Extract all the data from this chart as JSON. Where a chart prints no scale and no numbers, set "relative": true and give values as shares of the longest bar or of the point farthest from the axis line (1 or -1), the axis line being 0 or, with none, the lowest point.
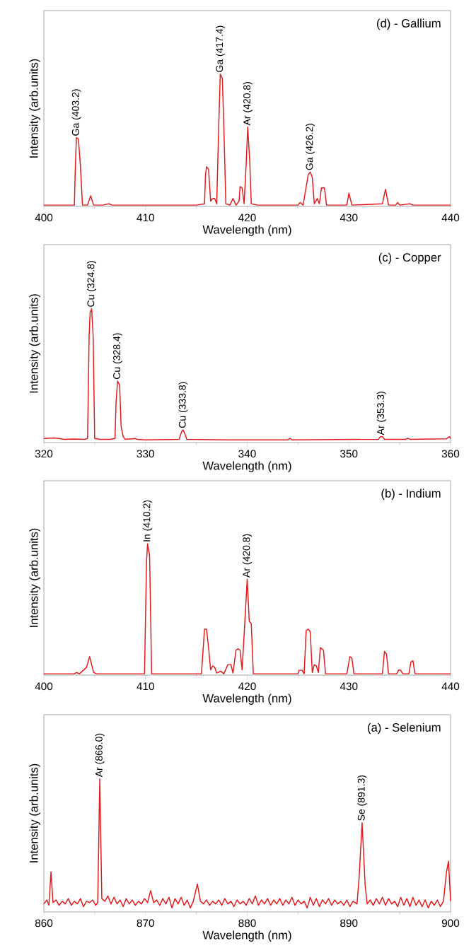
{
  "chart_data": [
    {
      "type": "line",
      "title": "(d) - Gallium",
      "xlabel": "Wavelength (nm)",
      "ylabel": "Intensity (arb.units)",
      "relative": true,
      "color": "#e31a1c",
      "xlim": [
        400,
        440
      ],
      "xticks": [
        400,
        410,
        420,
        430,
        440
      ],
      "x": [
        400,
        402,
        402.2,
        402.5,
        403.0,
        403.1,
        403.2,
        403.4,
        403.6,
        403.8,
        404.3,
        404.6,
        404.9,
        405.5,
        405.8,
        406.4,
        406.7,
        410,
        415,
        415.8,
        415.9,
        416.0,
        416.2,
        416.4,
        416.6,
        416.8,
        417.0,
        417.2,
        417.35,
        417.55,
        417.7,
        417.9,
        418.3,
        418.6,
        418.9,
        419.2,
        419.3,
        419.5,
        419.7,
        419.9,
        420.05,
        420.25,
        420.4,
        421,
        425,
        425.2,
        425.5,
        426.0,
        426.2,
        426.4,
        426.6,
        426.9,
        427.1,
        427.3,
        427.6,
        427.8,
        429.8,
        430.0,
        430.3,
        433.3,
        433.6,
        433.9,
        434.6,
        434.8,
        435.0,
        436.0,
        436.3,
        440
      ],
      "values": [
        0.01,
        0.01,
        0.01,
        0.01,
        0.01,
        0.3,
        0.52,
        0.51,
        0.3,
        0.01,
        0.01,
        0.08,
        0.01,
        0.01,
        0.01,
        0.02,
        0.01,
        0.01,
        0.01,
        0.02,
        0.24,
        0.3,
        0.28,
        0.04,
        0.06,
        0.06,
        0.02,
        0.61,
        1,
        0.97,
        0.61,
        0.02,
        0.01,
        0.06,
        0.01,
        0.04,
        0.15,
        0.14,
        0.02,
        0.32,
        0.6,
        0.34,
        0.02,
        0.01,
        0.01,
        0.03,
        0.01,
        0.24,
        0.26,
        0.22,
        0.02,
        0.06,
        0.02,
        0.14,
        0.14,
        0.01,
        0.01,
        0.1,
        0.01,
        0.02,
        0.13,
        0.01,
        0.01,
        0.03,
        0.01,
        0.02,
        0.01,
        0.01
      ],
      "annotations": [
        {
          "text": "Ga (403.2)",
          "x": 403.2,
          "y": 0.52
        },
        {
          "text": "Ga (417.4)",
          "x": 417.35,
          "y": 1
        },
        {
          "text": "Ar (420.8)",
          "x": 420.05,
          "y": 0.6
        },
        {
          "text": "Ga (426.2)",
          "x": 426.2,
          "y": 0.26
        }
      ]
    },
    {
      "type": "line",
      "title": "(c) - Copper",
      "xlabel": "Wavelength (nm)",
      "ylabel": "Intensity (arb.units)",
      "relative": true,
      "color": "#e31a1c",
      "xlim": [
        320,
        360
      ],
      "xticks": [
        320,
        330,
        340,
        350,
        360
      ],
      "x": [
        320,
        321,
        321.5,
        322,
        323,
        324,
        324.3,
        324.45,
        324.55,
        324.7,
        324.85,
        325.0,
        325.5,
        326.5,
        327.0,
        327.1,
        327.25,
        327.45,
        327.6,
        327.8,
        328.0,
        329,
        329.2,
        330,
        333.3,
        333.55,
        333.7,
        333.9,
        334.05,
        338,
        344.0,
        344.2,
        344.4,
        352.9,
        353.1,
        353.3,
        353.5,
        355.6,
        355.8,
        356,
        359.6,
        359.9,
        360
      ],
      "values": [
        0.03,
        0.034,
        0.03,
        0.024,
        0.026,
        0.024,
        0.03,
        0.79,
        0.97,
        1,
        0.79,
        0.03,
        0.024,
        0.024,
        0.03,
        0.3,
        0.46,
        0.43,
        0.12,
        0.044,
        0.024,
        0.03,
        0.024,
        0.02,
        0.024,
        0.08,
        0.095,
        0.06,
        0.024,
        0.02,
        0.02,
        0.032,
        0.02,
        0.024,
        0.044,
        0.044,
        0.024,
        0.024,
        0.032,
        0.024,
        0.028,
        0.044,
        0.03
      ],
      "annotations": [
        {
          "text": "Cu (324.8)",
          "x": 324.7,
          "y": 1
        },
        {
          "text": "Cu (328.4)",
          "x": 327.25,
          "y": 0.46
        },
        {
          "text": "Cu (333.8)",
          "x": 333.7,
          "y": 0.095
        },
        {
          "text": "Ar (353.3)",
          "x": 353.2,
          "y": 0.044
        }
      ]
    },
    {
      "type": "line",
      "title": "(b) - Indium",
      "xlabel": "Wavelength (nm)",
      "ylabel": "Intensity (arb.units)",
      "relative": true,
      "color": "#e31a1c",
      "xlim": [
        400,
        440
      ],
      "xticks": [
        400,
        410,
        420,
        430,
        440
      ],
      "x": [
        400,
        403,
        403.2,
        403.5,
        404.2,
        404.5,
        404.7,
        404.9,
        405.2,
        409.9,
        410.1,
        410.2,
        410.4,
        410.6,
        411,
        415.5,
        415.8,
        416.0,
        416.2,
        416.4,
        416.6,
        416.8,
        417.0,
        417.4,
        417.7,
        418.1,
        418.4,
        418.6,
        418.9,
        419.1,
        419.3,
        419.5,
        419.7,
        420.0,
        420.2,
        420.4,
        420.6,
        425,
        425.1,
        425.4,
        425.6,
        425.8,
        426.0,
        426.2,
        426.4,
        426.6,
        426.8,
        427.0,
        427.2,
        427.5,
        427.7,
        429.8,
        430.1,
        430.3,
        430.5,
        433.3,
        433.5,
        433.7,
        433.9,
        434.7,
        434.9,
        435.1,
        435.3,
        435.9,
        436.1,
        436.3,
        436.5,
        440
      ],
      "values": [
        0.01,
        0.01,
        0.02,
        0.01,
        0.06,
        0.14,
        0.08,
        0.02,
        0.01,
        0.01,
        0.87,
        1,
        0.91,
        0.01,
        0.01,
        0.01,
        0.35,
        0.35,
        0.21,
        0.04,
        0.07,
        0.06,
        0.016,
        0.03,
        0.01,
        0.08,
        0.08,
        0.016,
        0.19,
        0.2,
        0.19,
        0.04,
        0.31,
        0.73,
        0.41,
        0.39,
        0.01,
        0.01,
        0.037,
        0.037,
        0.01,
        0.34,
        0.35,
        0.33,
        0.02,
        0.08,
        0.07,
        0.02,
        0.21,
        0.19,
        0.01,
        0.01,
        0.14,
        0.13,
        0.01,
        0.01,
        0.18,
        0.16,
        0.01,
        0.01,
        0.04,
        0.037,
        0.01,
        0.01,
        0.1,
        0.11,
        0.01,
        0.01
      ],
      "annotations": [
        {
          "text": "In (410.2)",
          "x": 410.2,
          "y": 1
        },
        {
          "text": "Ar (420.8)",
          "x": 420.0,
          "y": 0.73
        }
      ]
    },
    {
      "type": "line",
      "title": "(a) - Selenium",
      "xlabel": "Wavelength (nm)",
      "ylabel": "Intensity (arb.units)",
      "relative": true,
      "color": "#e31a1c",
      "xlim": [
        860,
        900
      ],
      "xticks": [
        860,
        870,
        880,
        890,
        900
      ],
      "x": [
        860.0,
        860.3,
        860.5,
        860.7,
        860.9,
        861.2,
        861.5,
        861.8,
        862.1,
        862.4,
        862.7,
        863.0,
        863.3,
        863.6,
        863.9,
        864.2,
        864.5,
        864.8,
        865.1,
        865.3,
        865.5,
        865.7,
        866.0,
        866.3,
        866.6,
        866.9,
        867.2,
        867.5,
        867.8,
        868.1,
        868.4,
        868.7,
        869.0,
        869.3,
        869.6,
        869.9,
        870.2,
        870.5,
        870.8,
        871.1,
        871.4,
        871.7,
        872.0,
        872.3,
        872.6,
        872.9,
        873.2,
        873.5,
        873.8,
        874.1,
        874.4,
        874.7,
        875.1,
        875.4,
        875.7,
        876.0,
        876.3,
        876.6,
        876.9,
        877.2,
        877.5,
        877.8,
        878.1,
        878.4,
        878.7,
        879.0,
        879.3,
        879.6,
        879.9,
        880.2,
        880.5,
        880.8,
        881.1,
        881.4,
        881.7,
        882.0,
        882.3,
        882.6,
        882.9,
        883.2,
        883.5,
        883.8,
        884.1,
        884.4,
        884.7,
        885.0,
        885.3,
        885.6,
        885.9,
        886.2,
        886.5,
        886.8,
        887.1,
        887.4,
        887.7,
        888.0,
        888.3,
        888.6,
        888.9,
        889.2,
        889.5,
        889.8,
        890.1,
        890.4,
        890.8,
        891.0,
        891.3,
        891.6,
        891.8,
        892.1,
        892.4,
        892.7,
        893.0,
        893.3,
        893.6,
        893.9,
        894.2,
        894.5,
        894.8,
        895.1,
        895.4,
        895.7,
        896.0,
        896.3,
        896.6,
        896.9,
        897.2,
        897.5,
        897.8,
        898.1,
        898.4,
        898.7,
        899.0,
        899.3,
        899.6,
        899.8,
        900.0
      ],
      "values": [
        0.06,
        0.09,
        0.05,
        0.3,
        0.07,
        0.09,
        0.05,
        0.08,
        0.06,
        0.1,
        0.05,
        0.08,
        0.06,
        0.1,
        0.04,
        0.08,
        0.07,
        0.09,
        0.05,
        0.07,
        1,
        0.1,
        0.08,
        0.12,
        0.06,
        0.11,
        0.06,
        0.09,
        0.04,
        0.1,
        0.06,
        0.09,
        0.05,
        0.08,
        0.06,
        0.1,
        0.07,
        0.16,
        0.07,
        0.09,
        0.05,
        0.1,
        0.06,
        0.11,
        0.03,
        0.1,
        0.06,
        0.11,
        0.05,
        0.09,
        0.03,
        0.08,
        0.21,
        0.08,
        0.06,
        0.09,
        0.05,
        0.08,
        0.06,
        0.09,
        0.05,
        0.1,
        0.06,
        0.08,
        0.04,
        0.09,
        0.06,
        0.08,
        0.05,
        0.1,
        0.06,
        0.12,
        0.05,
        0.09,
        0.06,
        0.1,
        0.05,
        0.09,
        0.06,
        0.1,
        0.05,
        0.09,
        0.06,
        0.11,
        0.05,
        0.09,
        0.06,
        0.08,
        0.03,
        0.11,
        0.05,
        0.1,
        0.04,
        0.09,
        0.06,
        0.1,
        0.05,
        0.09,
        0.06,
        0.08,
        0.05,
        0.09,
        0.04,
        0.08,
        0.06,
        0.25,
        0.67,
        0.2,
        0.06,
        0.09,
        0.05,
        0.1,
        0.06,
        0.11,
        0.05,
        0.1,
        0.06,
        0.08,
        0.04,
        0.11,
        0.05,
        0.1,
        0.04,
        0.11,
        0.05,
        0.09,
        0.04,
        0.09,
        0.03,
        0.08,
        0.05,
        0.09,
        0.04,
        0.08,
        0.3,
        0.38,
        0.08
      ],
      "annotations": [
        {
          "text": "Ar (866.0)",
          "x": 865.5,
          "y": 1
        },
        {
          "text": "Se (891.3)",
          "x": 891.3,
          "y": 0.67
        }
      ]
    }
  ]
}
